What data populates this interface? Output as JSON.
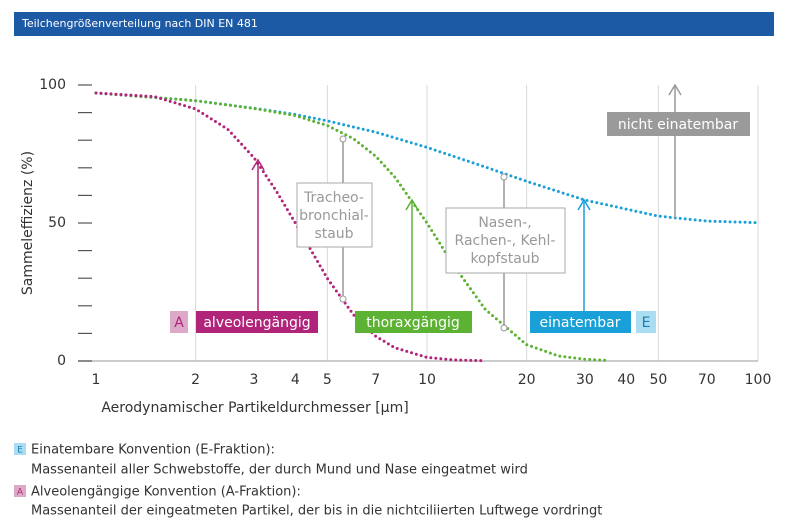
{
  "chart_data": {
    "type": "line",
    "header": "Teilchengrößenverteilung nach DIN EN 481",
    "x_label": "Aerodynamischer Partikeldurchmesser [µm]",
    "y_label": "Sammeleffizienz (%)",
    "x_scale": "log",
    "xlim": [
      1,
      100
    ],
    "xticks": [
      1,
      2,
      3,
      4,
      5,
      7,
      10,
      20,
      30,
      40,
      50,
      70,
      100
    ],
    "x_gridlines": [
      2,
      5,
      10,
      20,
      50,
      100
    ],
    "ylim": [
      0,
      100
    ],
    "yticks": [
      0,
      50,
      100
    ],
    "y_minor_ticks": [
      10,
      20,
      30,
      40,
      60,
      70,
      80,
      90
    ],
    "series": [
      {
        "name": "einatembar",
        "color": "#1aa0d8",
        "x": [
          1,
          2,
          3,
          4,
          5,
          7,
          10,
          15,
          20,
          30,
          50,
          70,
          100
        ],
        "values": [
          97.1,
          94.3,
          91.6,
          89.3,
          87.0,
          82.9,
          77.4,
          70.3,
          65.1,
          58.3,
          52.5,
          50.7,
          50.1
        ]
      },
      {
        "name": "thoraxgängig",
        "color": "#5cb233",
        "x": [
          1,
          2,
          3,
          4,
          5,
          6,
          7,
          8,
          10,
          12,
          15,
          20,
          25,
          30,
          35
        ],
        "values": [
          97.1,
          94.3,
          91.5,
          88.9,
          85.3,
          80.5,
          74.2,
          66.6,
          50.0,
          34.9,
          18.7,
          5.9,
          1.8,
          0.6,
          0.2
        ]
      },
      {
        "name": "alveolengängig",
        "color": "#b0257a",
        "x": [
          1,
          1.5,
          2,
          2.5,
          3,
          3.5,
          4,
          5,
          6,
          7,
          8,
          10,
          12,
          15
        ],
        "values": [
          97.1,
          95.8,
          91.3,
          84.0,
          73.7,
          61.7,
          50.0,
          29.9,
          16.7,
          9.0,
          4.8,
          1.3,
          0.4,
          0.1
        ]
      }
    ],
    "annotations": {
      "a_badge": "A",
      "e_badge": "E",
      "nicht": "nicht einatembar",
      "tracheo": [
        "Tracheo-",
        "bronchial-",
        "staub"
      ],
      "nasen": [
        "Nasen-,",
        "Rachen-, Kehl-",
        "kopfstaub"
      ]
    },
    "notes": [
      {
        "badge": "E",
        "title": "Einatembare Konvention (E-Fraktion):",
        "text": "Massenanteil aller Schwebstoffe, der durch Mund und Nase eingeatmet wird"
      },
      {
        "badge": "A",
        "title": "Alveolengängige Konvention (A-Fraktion):",
        "text": "Massenanteil der eingeatmeten Partikel, der bis in die nichtciliierten Luftwege vordringt"
      }
    ]
  }
}
